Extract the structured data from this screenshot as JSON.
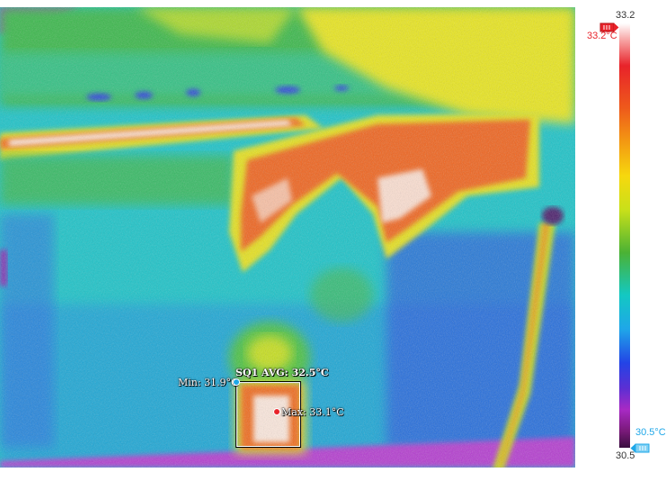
{
  "measurement": {
    "roi_label": "SQ1 AVG: 32.5°C",
    "min_label": "Min: 31.9°C",
    "max_label": "Max: 33.1°C"
  },
  "scale": {
    "max_value": "33.2",
    "min_value": "30.5",
    "high_marker_label": "33.2°C",
    "low_marker_label": "30.5°C",
    "high_color": "#e8232a",
    "low_color": "#1fa7e8"
  },
  "icons": {
    "high_marker": "battery-flag-icon",
    "low_marker": "battery-flag-icon"
  }
}
